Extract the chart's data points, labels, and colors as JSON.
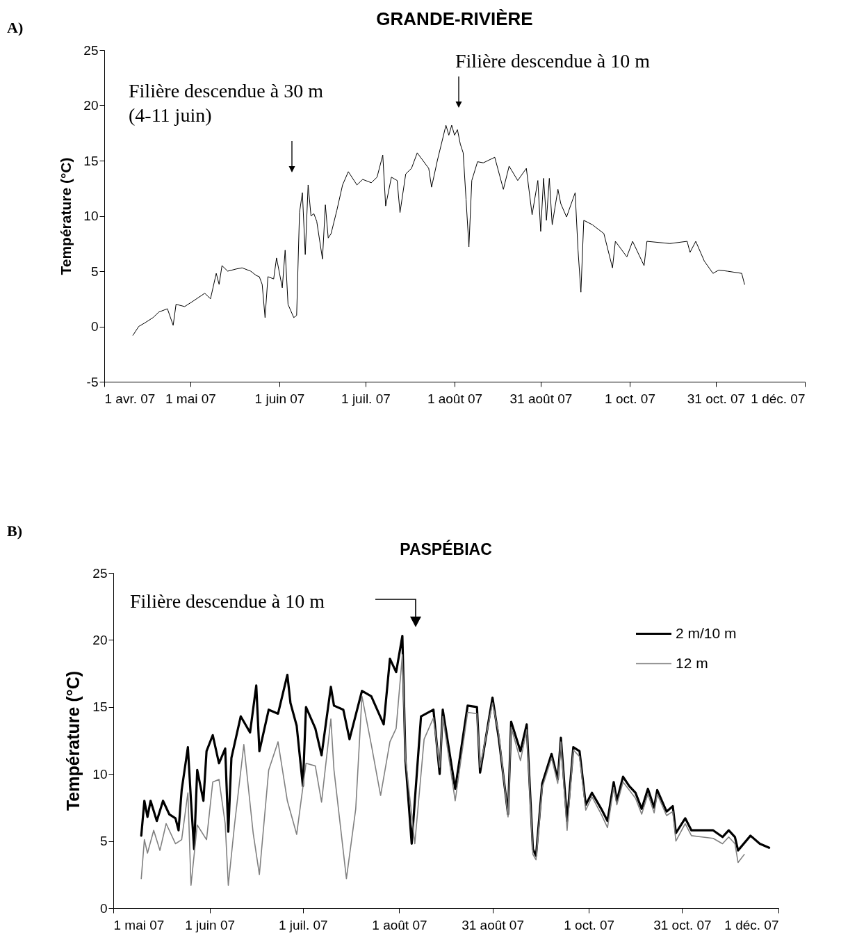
{
  "chart_data": [
    {
      "type": "line",
      "title": "GRANDE-RIVIÈRE",
      "ylabel": "Température (°C)",
      "annotations": [
        "A)",
        "Filière descendue à 30 m\n(4-11 juin)",
        "Filière descendue à 10 m"
      ],
      "xlim": [
        "2007-04-01",
        "2007-12-01"
      ],
      "xticks": [
        {
          "value": "2007-04-01",
          "label": "1 avr. 07"
        },
        {
          "value": "2007-05-01",
          "label": "1 mai 07"
        },
        {
          "value": "2007-06-01",
          "label": "1 juin 07"
        },
        {
          "value": "2007-07-01",
          "label": "1 juil. 07"
        },
        {
          "value": "2007-08-01",
          "label": "1 août 07"
        },
        {
          "value": "2007-08-31",
          "label": "31 août 07"
        },
        {
          "value": "2007-10-01",
          "label": "1 oct. 07"
        },
        {
          "value": "2007-10-31",
          "label": "31 oct. 07"
        },
        {
          "value": "2007-12-01",
          "label": "1 déc. 07"
        }
      ],
      "ylim": [
        -5,
        25
      ],
      "yticks": [
        -5,
        0,
        5,
        10,
        15,
        20,
        25
      ],
      "series": [
        {
          "color": "#000000",
          "x": [
            "2007-04-11",
            "2007-04-13",
            "2007-04-15",
            "2007-04-18",
            "2007-04-20",
            "2007-04-23",
            "2007-04-25",
            "2007-04-26",
            "2007-04-29",
            "2007-05-02",
            "2007-05-06",
            "2007-05-08",
            "2007-05-10",
            "2007-05-11",
            "2007-05-12",
            "2007-05-14",
            "2007-05-17",
            "2007-05-19",
            "2007-05-22",
            "2007-05-24",
            "2007-05-25",
            "2007-05-26",
            "2007-05-27",
            "2007-05-28",
            "2007-05-30",
            "2007-05-31",
            "2007-06-02",
            "2007-06-03",
            "2007-06-04",
            "2007-06-06",
            "2007-06-07",
            "2007-06-08",
            "2007-06-09",
            "2007-06-10",
            "2007-06-11",
            "2007-06-12",
            "2007-06-13",
            "2007-06-14",
            "2007-06-16",
            "2007-06-17",
            "2007-06-18",
            "2007-06-19",
            "2007-06-21",
            "2007-06-23",
            "2007-06-25",
            "2007-06-28",
            "2007-06-30",
            "2007-07-03",
            "2007-07-05",
            "2007-07-07",
            "2007-07-08",
            "2007-07-10",
            "2007-07-12",
            "2007-07-13",
            "2007-07-15",
            "2007-07-17",
            "2007-07-19",
            "2007-07-21",
            "2007-07-23",
            "2007-07-24",
            "2007-07-26",
            "2007-07-29",
            "2007-07-30",
            "2007-07-31",
            "2007-08-01",
            "2007-08-02",
            "2007-08-03",
            "2007-08-04",
            "2007-08-05",
            "2007-08-06",
            "2007-08-07",
            "2007-08-09",
            "2007-08-11",
            "2007-08-15",
            "2007-08-18",
            "2007-08-20",
            "2007-08-23",
            "2007-08-26",
            "2007-08-28",
            "2007-08-30",
            "2007-08-31",
            "2007-09-01",
            "2007-09-02",
            "2007-09-03",
            "2007-09-04",
            "2007-09-06",
            "2007-09-07",
            "2007-09-09",
            "2007-09-12",
            "2007-09-13",
            "2007-09-14",
            "2007-09-15",
            "2007-09-18",
            "2007-09-22",
            "2007-09-25",
            "2007-09-26",
            "2007-09-30",
            "2007-10-02",
            "2007-10-06",
            "2007-10-07",
            "2007-10-15",
            "2007-10-21",
            "2007-10-22",
            "2007-10-24",
            "2007-10-27",
            "2007-10-30",
            "2007-11-01",
            "2007-11-04",
            "2007-11-09",
            "2007-11-10"
          ],
          "values": [
            -0.8,
            0.0,
            0.3,
            0.8,
            1.3,
            1.6,
            0.1,
            2.0,
            1.8,
            2.3,
            3.0,
            2.5,
            4.8,
            3.8,
            5.5,
            5.0,
            5.2,
            5.3,
            5.0,
            4.6,
            4.5,
            3.8,
            0.8,
            4.5,
            4.3,
            6.2,
            3.5,
            6.9,
            2.0,
            0.8,
            1.0,
            10.3,
            12.1,
            6.5,
            12.8,
            10.0,
            10.2,
            9.5,
            6.1,
            11.0,
            8.0,
            8.4,
            10.5,
            12.8,
            14.0,
            12.8,
            13.3,
            13.0,
            13.5,
            15.5,
            10.9,
            13.5,
            13.2,
            10.3,
            13.8,
            14.3,
            15.7,
            15.0,
            14.3,
            12.6,
            15.0,
            18.2,
            17.3,
            18.2,
            17.3,
            17.8,
            16.5,
            15.7,
            11.5,
            7.2,
            13.2,
            14.9,
            14.8,
            15.3,
            12.4,
            14.5,
            13.2,
            14.3,
            10.1,
            13.2,
            8.6,
            13.4,
            9.6,
            13.4,
            9.2,
            12.4,
            11.1,
            9.9,
            12.1,
            6.9,
            3.1,
            9.6,
            9.2,
            8.4,
            5.3,
            7.7,
            6.3,
            7.7,
            5.5,
            7.7,
            7.5,
            7.7,
            6.7,
            7.7,
            5.9,
            4.8,
            5.1,
            5.0,
            4.8,
            3.8
          ]
        }
      ]
    },
    {
      "type": "line",
      "title": "PASPÉBIAC",
      "ylabel": "Température (°C)",
      "legend": "top right",
      "annotations": [
        "B)",
        "Filière descendue à 10 m"
      ],
      "xlim": [
        "2007-05-01",
        "2007-12-01"
      ],
      "xticks": [
        {
          "value": "2007-05-01",
          "label": "1 mai 07"
        },
        {
          "value": "2007-06-01",
          "label": "1 juin 07"
        },
        {
          "value": "2007-07-01",
          "label": "1 juil. 07"
        },
        {
          "value": "2007-08-01",
          "label": "1 août 07"
        },
        {
          "value": "2007-08-31",
          "label": "31 août 07"
        },
        {
          "value": "2007-10-01",
          "label": "1 oct. 07"
        },
        {
          "value": "2007-10-31",
          "label": "31 oct. 07"
        },
        {
          "value": "2007-12-01",
          "label": "1 déc. 07"
        }
      ],
      "ylim": [
        0,
        25
      ],
      "yticks": [
        0,
        5,
        10,
        15,
        20,
        25
      ],
      "series": [
        {
          "name": "2 m/10 m",
          "color": "#000000",
          "x": [
            "2007-05-10",
            "2007-05-11",
            "2007-05-12",
            "2007-05-13",
            "2007-05-15",
            "2007-05-17",
            "2007-05-19",
            "2007-05-21",
            "2007-05-22",
            "2007-05-23",
            "2007-05-25",
            "2007-05-26",
            "2007-05-27",
            "2007-05-28",
            "2007-05-30",
            "2007-05-31",
            "2007-06-02",
            "2007-06-04",
            "2007-06-06",
            "2007-06-07",
            "2007-06-08",
            "2007-06-11",
            "2007-06-14",
            "2007-06-16",
            "2007-06-17",
            "2007-06-20",
            "2007-06-23",
            "2007-06-26",
            "2007-06-27",
            "2007-06-29",
            "2007-07-01",
            "2007-07-02",
            "2007-07-05",
            "2007-07-07",
            "2007-07-10",
            "2007-07-11",
            "2007-07-14",
            "2007-07-16",
            "2007-07-20",
            "2007-07-23",
            "2007-07-27",
            "2007-07-29",
            "2007-07-31",
            "2007-08-02",
            "2007-08-03",
            "2007-08-05",
            "2007-08-08",
            "2007-08-12",
            "2007-08-14",
            "2007-08-15",
            "2007-08-19",
            "2007-08-23",
            "2007-08-26",
            "2007-08-27",
            "2007-08-31",
            "2007-09-02",
            "2007-09-05",
            "2007-09-06",
            "2007-09-09",
            "2007-09-11",
            "2007-09-13",
            "2007-09-14",
            "2007-09-16",
            "2007-09-19",
            "2007-09-21",
            "2007-09-22",
            "2007-09-24",
            "2007-09-26",
            "2007-09-28",
            "2007-09-30",
            "2007-10-02",
            "2007-10-05",
            "2007-10-07",
            "2007-10-09",
            "2007-10-10",
            "2007-10-12",
            "2007-10-14",
            "2007-10-16",
            "2007-10-18",
            "2007-10-20",
            "2007-10-22",
            "2007-10-23",
            "2007-10-26",
            "2007-10-28",
            "2007-10-29",
            "2007-11-01",
            "2007-11-03",
            "2007-11-10",
            "2007-11-13",
            "2007-11-15",
            "2007-11-17",
            "2007-11-18",
            "2007-11-22",
            "2007-11-25",
            "2007-11-28"
          ],
          "values": [
            5.4,
            8.0,
            6.8,
            8.0,
            6.5,
            8.0,
            7.0,
            6.7,
            5.8,
            8.8,
            12.0,
            8.0,
            4.4,
            10.3,
            8.0,
            11.7,
            12.9,
            10.8,
            11.9,
            5.7,
            11.2,
            14.3,
            13.1,
            16.6,
            11.7,
            14.8,
            14.5,
            17.4,
            15.3,
            13.6,
            9.1,
            15.0,
            13.4,
            11.4,
            16.5,
            15.1,
            14.8,
            12.6,
            16.2,
            15.8,
            13.7,
            18.6,
            17.6,
            20.3,
            11.0,
            4.8,
            14.3,
            14.8,
            10.0,
            14.8,
            8.9,
            15.1,
            15.0,
            10.1,
            15.7,
            12.7,
            7.0,
            13.9,
            11.7,
            13.7,
            4.4,
            3.9,
            9.3,
            11.5,
            9.6,
            12.7,
            6.5,
            12.0,
            11.7,
            7.7,
            8.6,
            7.4,
            6.5,
            9.4,
            8.0,
            9.8,
            9.1,
            8.6,
            7.4,
            8.9,
            7.5,
            8.8,
            7.2,
            7.6,
            5.6,
            6.7,
            5.8,
            5.8,
            5.3,
            5.8,
            5.3,
            4.3,
            5.4,
            4.8,
            4.5
          ]
        },
        {
          "name": "12 m",
          "color": "#808080",
          "x": [
            "2007-05-10",
            "2007-05-11",
            "2007-05-12",
            "2007-05-14",
            "2007-05-16",
            "2007-05-18",
            "2007-05-21",
            "2007-05-23",
            "2007-05-25",
            "2007-05-26",
            "2007-05-28",
            "2007-05-31",
            "2007-06-02",
            "2007-06-04",
            "2007-06-06",
            "2007-06-07",
            "2007-06-09",
            "2007-06-12",
            "2007-06-15",
            "2007-06-17",
            "2007-06-20",
            "2007-06-23",
            "2007-06-26",
            "2007-06-29",
            "2007-07-02",
            "2007-07-05",
            "2007-07-07",
            "2007-07-10",
            "2007-07-11",
            "2007-07-15",
            "2007-07-18",
            "2007-07-20",
            "2007-07-23",
            "2007-07-26",
            "2007-07-29",
            "2007-07-31",
            "2007-08-02",
            "2007-08-03",
            "2007-08-06",
            "2007-08-09",
            "2007-08-12",
            "2007-08-14",
            "2007-08-15",
            "2007-08-19",
            "2007-08-23",
            "2007-08-26",
            "2007-08-27",
            "2007-08-31",
            "2007-09-02",
            "2007-09-05",
            "2007-09-06",
            "2007-09-09",
            "2007-09-11",
            "2007-09-13",
            "2007-09-14",
            "2007-09-16",
            "2007-09-19",
            "2007-09-21",
            "2007-09-22",
            "2007-09-24",
            "2007-09-26",
            "2007-09-28",
            "2007-09-30",
            "2007-10-02",
            "2007-10-05",
            "2007-10-07",
            "2007-10-09",
            "2007-10-10",
            "2007-10-12",
            "2007-10-14",
            "2007-10-16",
            "2007-10-18",
            "2007-10-20",
            "2007-10-22",
            "2007-10-23",
            "2007-10-26",
            "2007-10-28",
            "2007-10-29",
            "2007-11-01",
            "2007-11-03",
            "2007-11-10",
            "2007-11-13",
            "2007-11-15",
            "2007-11-17",
            "2007-11-18",
            "2007-11-20"
          ],
          "values": [
            2.2,
            5.1,
            4.1,
            5.8,
            4.3,
            6.3,
            4.8,
            5.1,
            8.6,
            1.7,
            6.2,
            5.1,
            9.4,
            9.6,
            6.3,
            1.7,
            6.2,
            12.2,
            5.6,
            2.5,
            10.3,
            12.4,
            8.0,
            5.5,
            10.8,
            10.6,
            7.9,
            14.1,
            10.3,
            2.2,
            7.4,
            15.8,
            12.2,
            8.4,
            12.4,
            13.4,
            18.9,
            11.2,
            4.8,
            12.6,
            14.2,
            10.5,
            14.3,
            8.0,
            14.6,
            14.5,
            10.5,
            15.3,
            13.0,
            6.8,
            13.5,
            11.0,
            13.3,
            4.0,
            3.6,
            9.0,
            11.2,
            9.3,
            12.4,
            5.8,
            11.8,
            11.3,
            7.3,
            8.3,
            7.0,
            6.0,
            9.0,
            7.7,
            9.4,
            8.8,
            8.2,
            7.0,
            8.5,
            7.1,
            8.5,
            6.9,
            7.2,
            5.0,
            6.3,
            5.4,
            5.2,
            4.8,
            5.3,
            4.8,
            3.4,
            4.0
          ]
        }
      ]
    }
  ]
}
